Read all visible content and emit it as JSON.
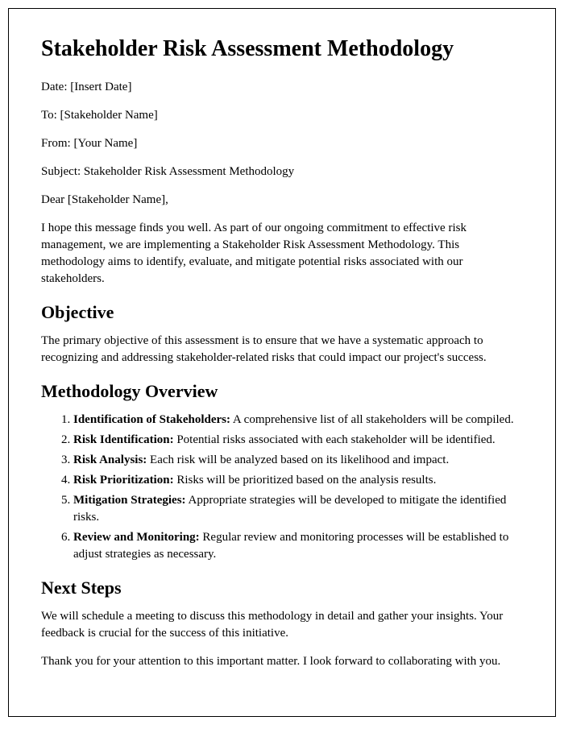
{
  "title": "Stakeholder Risk Assessment Methodology",
  "meta": {
    "date_label": "Date: ",
    "date_value": "[Insert Date]",
    "to_label": "To: ",
    "to_value": "[Stakeholder Name]",
    "from_label": "From: ",
    "from_value": "[Your Name]",
    "subject_label": "Subject: ",
    "subject_value": "Stakeholder Risk Assessment Methodology"
  },
  "salutation": "Dear [Stakeholder Name],",
  "intro_paragraph": "I hope this message finds you well. As part of our ongoing commitment to effective risk management, we are implementing a Stakeholder Risk Assessment Methodology. This methodology aims to identify, evaluate, and mitigate potential risks associated with our stakeholders.",
  "sections": {
    "objective": {
      "heading": "Objective",
      "body": "The primary objective of this assessment is to ensure that we have a systematic approach to recognizing and addressing stakeholder-related risks that could impact our project's success."
    },
    "methodology": {
      "heading": "Methodology Overview",
      "items": [
        {
          "label": "Identification of Stakeholders:",
          "desc": " A comprehensive list of all stakeholders will be compiled."
        },
        {
          "label": "Risk Identification:",
          "desc": " Potential risks associated with each stakeholder will be identified."
        },
        {
          "label": "Risk Analysis:",
          "desc": " Each risk will be analyzed based on its likelihood and impact."
        },
        {
          "label": "Risk Prioritization:",
          "desc": " Risks will be prioritized based on the analysis results."
        },
        {
          "label": "Mitigation Strategies:",
          "desc": " Appropriate strategies will be developed to mitigate the identified risks."
        },
        {
          "label": "Review and Monitoring:",
          "desc": " Regular review and monitoring processes will be established to adjust strategies as necessary."
        }
      ]
    },
    "next_steps": {
      "heading": "Next Steps",
      "body1": "We will schedule a meeting to discuss this methodology in detail and gather your insights. Your feedback is crucial for the success of this initiative.",
      "body2": "Thank you for your attention to this important matter. I look forward to collaborating with you."
    }
  },
  "styles": {
    "text_color": "#000000",
    "background_color": "#ffffff",
    "border_color": "#000000",
    "h1_fontsize": 28,
    "h2_fontsize": 22,
    "body_fontsize": 15
  }
}
